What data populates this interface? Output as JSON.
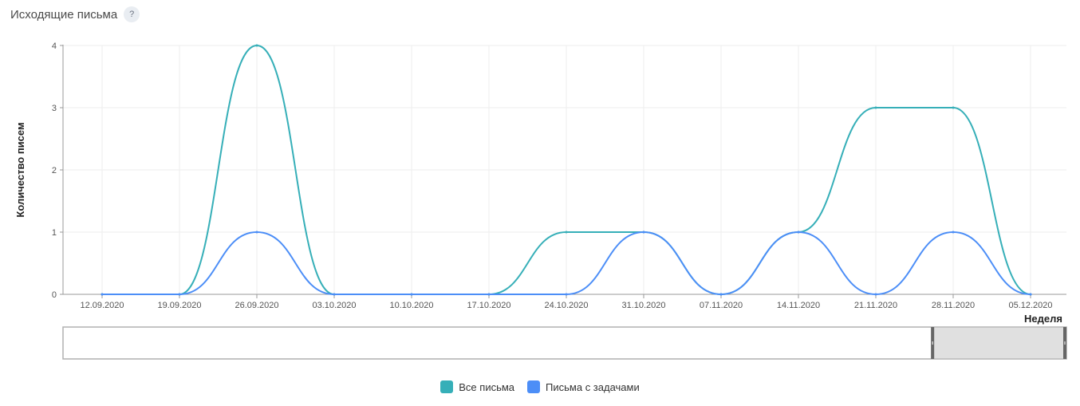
{
  "header": {
    "title": "Исходящие письма",
    "help_icon_text": "?",
    "help_icon": "question-icon"
  },
  "colors": {
    "series_all": "#36AFB8",
    "series_tasks": "#4C8EF7",
    "grid": "#eeeeee",
    "axis": "#999999",
    "navigator_fill": "#e0e0e0",
    "navigator_handle": "#666666"
  },
  "chart_data": {
    "type": "line",
    "title": "Исходящие письма",
    "xlabel": "Неделя",
    "ylabel": "Количество писем",
    "categories": [
      "12.09.2020",
      "19.09.2020",
      "26.09.2020",
      "03.10.2020",
      "10.10.2020",
      "17.10.2020",
      "24.10.2020",
      "31.10.2020",
      "07.11.2020",
      "14.11.2020",
      "21.11.2020",
      "28.11.2020",
      "05.12.2020"
    ],
    "ylim": [
      0,
      4
    ],
    "yticks": [
      0,
      1,
      2,
      3,
      4
    ],
    "grid": true,
    "legend_position": "bottom-center",
    "series": [
      {
        "name": "Все письма",
        "values": [
          0,
          0,
          4,
          0,
          0,
          0,
          1,
          1,
          0,
          1,
          3,
          3,
          0
        ]
      },
      {
        "name": "Письма с задачами",
        "values": [
          0,
          0,
          1,
          0,
          0,
          0,
          0,
          1,
          0,
          1,
          0,
          1,
          0
        ]
      }
    ]
  },
  "navigator": {
    "selected_range": [
      0.865,
      1.0
    ]
  }
}
